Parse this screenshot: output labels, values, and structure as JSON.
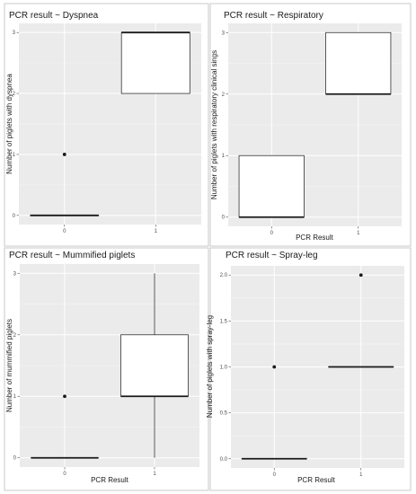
{
  "chart_data": [
    {
      "type": "box",
      "title": "PCR result ~ Dyspnea",
      "xlabel": "",
      "ylabel": "Number of piglets with dyspnea",
      "categories": [
        "0",
        "1"
      ],
      "ylim": [
        -0.15,
        3.15
      ],
      "yticks": [
        0,
        1,
        2,
        3
      ],
      "ytick_labels": [
        "0",
        "1",
        "2",
        "3"
      ],
      "boxes": [
        {
          "x": "0",
          "q1": 0,
          "median": 0,
          "q3": 0,
          "whisker_low": 0,
          "whisker_high": 0,
          "outliers": [
            1
          ]
        },
        {
          "x": "1",
          "q1": 2,
          "median": 3,
          "q3": 3,
          "whisker_low": 2,
          "whisker_high": 3,
          "outliers": []
        }
      ]
    },
    {
      "type": "box",
      "title": "PCR result ~ Respiratory",
      "xlabel": "PCR Result",
      "ylabel": "Number of piglets with respiratory clinical sings",
      "categories": [
        "0",
        "1"
      ],
      "ylim": [
        -0.15,
        3.15
      ],
      "yticks": [
        0,
        1,
        2,
        3
      ],
      "ytick_labels": [
        "0",
        "1",
        "2",
        "3"
      ],
      "boxes": [
        {
          "x": "0",
          "q1": 0,
          "median": 0,
          "q3": 1,
          "whisker_low": 0,
          "whisker_high": 1,
          "outliers": []
        },
        {
          "x": "1",
          "q1": 2,
          "median": 2,
          "q3": 3,
          "whisker_low": 2,
          "whisker_high": 3,
          "outliers": []
        }
      ]
    },
    {
      "type": "box",
      "title": "PCR result ~ Mummified piglets",
      "xlabel": "PCR Result",
      "ylabel": "Number of mummified piglets",
      "categories": [
        "0",
        "1"
      ],
      "ylim": [
        -0.15,
        3.15
      ],
      "yticks": [
        0,
        1,
        2,
        3
      ],
      "ytick_labels": [
        "0",
        "1",
        "2",
        "3"
      ],
      "boxes": [
        {
          "x": "0",
          "q1": 0,
          "median": 0,
          "q3": 0,
          "whisker_low": 0,
          "whisker_high": 0,
          "outliers": [
            1
          ]
        },
        {
          "x": "1",
          "q1": 1,
          "median": 1,
          "q3": 2,
          "whisker_low": 0,
          "whisker_high": 3,
          "outliers": []
        }
      ]
    },
    {
      "type": "box",
      "title": "PCR result ~ Spray-leg",
      "xlabel": "PCR Result",
      "ylabel": "Number of piglets with spray-leg",
      "categories": [
        "0",
        "1"
      ],
      "ylim": [
        -0.1,
        2.1
      ],
      "yticks": [
        0,
        0.5,
        1,
        1.5,
        2
      ],
      "ytick_labels": [
        "0.0",
        "0.5",
        "1.0",
        "1.5",
        "2.0"
      ],
      "boxes": [
        {
          "x": "0",
          "q1": 0,
          "median": 0,
          "q3": 0,
          "whisker_low": 0,
          "whisker_high": 0,
          "outliers": [
            1
          ]
        },
        {
          "x": "1",
          "q1": 1,
          "median": 1,
          "q3": 1,
          "whisker_low": 1,
          "whisker_high": 1,
          "outliers": [
            2
          ]
        }
      ]
    }
  ]
}
